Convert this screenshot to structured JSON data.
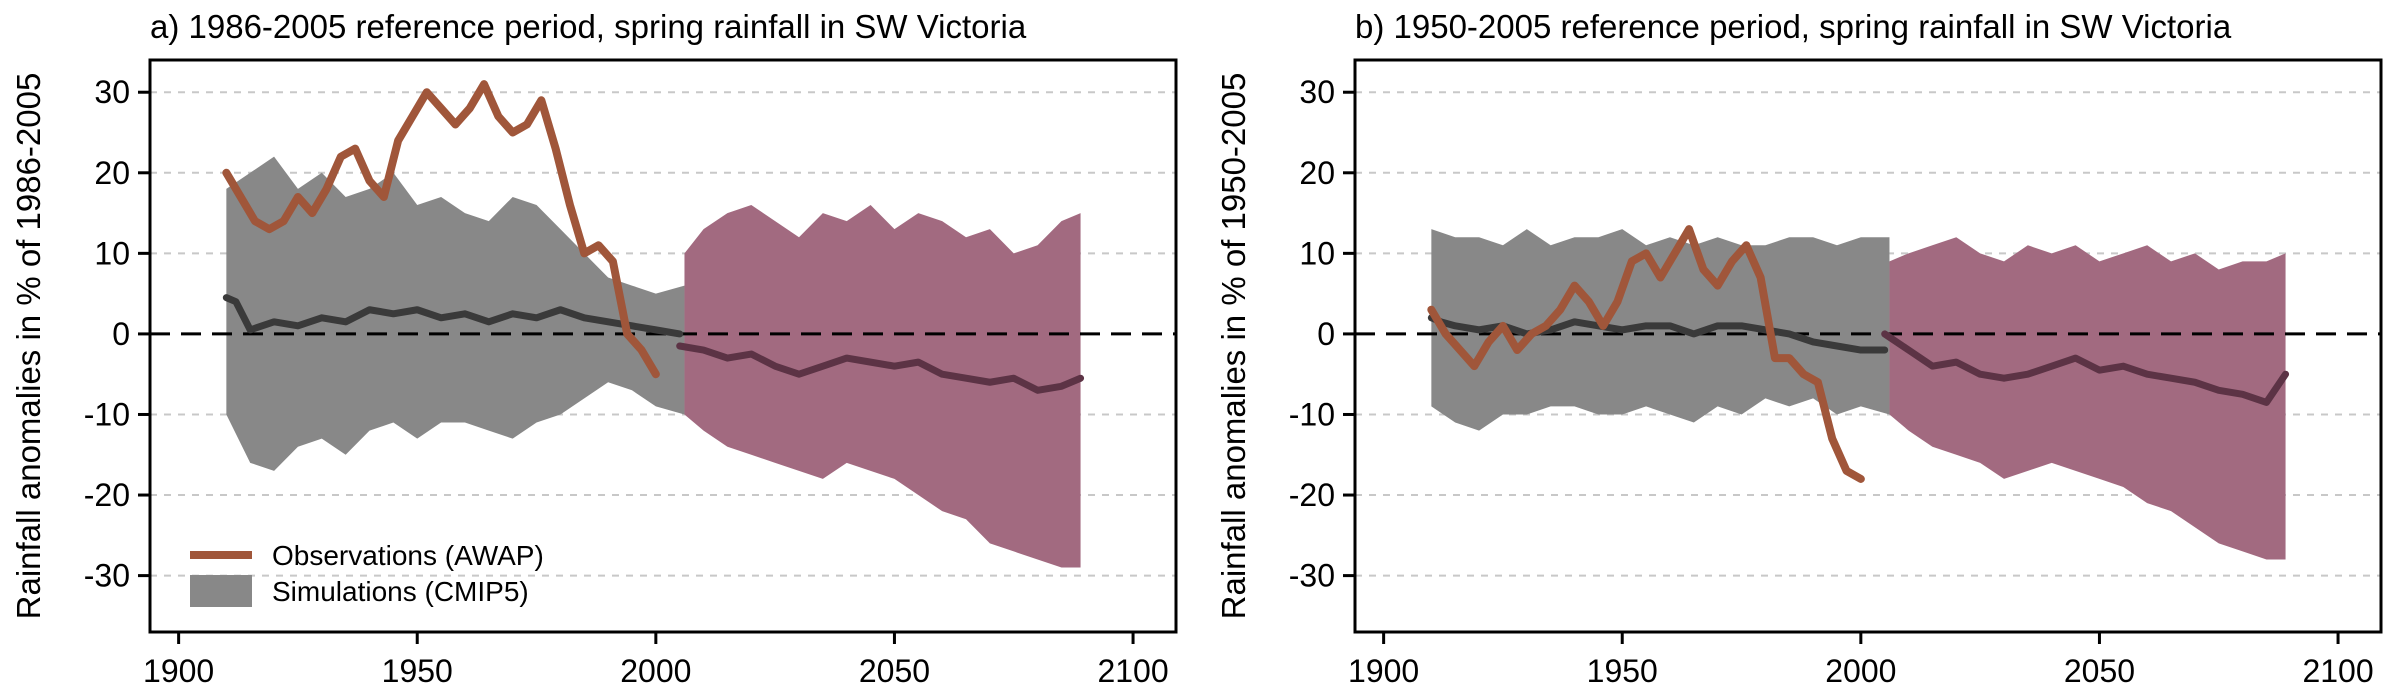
{
  "colors": {
    "observations": "#a0563a",
    "simulations": "#888888",
    "future": "#a26a80",
    "mean_line": "#3a3a3a",
    "mean_line_future": "#5c3345",
    "grid": "#c8c8c8"
  },
  "legend": {
    "observations": "Observations (AWAP)",
    "simulations": "Simulations (CMIP5)"
  },
  "chart_data": [
    {
      "type": "area",
      "title": "a) 1986-2005 reference period, spring rainfall in SW Victoria",
      "xlabel": "",
      "ylabel": "Rainfall anomalies in % of 1986-2005",
      "xlim": [
        1894,
        2109
      ],
      "ylim": [
        -37,
        34
      ],
      "xticks": [
        1900,
        1950,
        2000,
        2050,
        2100
      ],
      "yticks": [
        30,
        20,
        10,
        0,
        -10,
        -20,
        -30
      ],
      "xtick_labels": [
        "1900",
        "1950",
        "2000",
        "2050",
        "2100"
      ],
      "ytick_labels": [
        "30",
        "20",
        "10",
        "0",
        "-10",
        "-20",
        "-30"
      ],
      "grid": "horizontal dashed",
      "legend_position": "bottom-left",
      "simulations_envelope": {
        "x": [
          1910,
          1915,
          1920,
          1925,
          1930,
          1935,
          1940,
          1945,
          1950,
          1955,
          1960,
          1965,
          1970,
          1975,
          1980,
          1985,
          1990,
          1995,
          2000,
          2006
        ],
        "upper": [
          18,
          20,
          22,
          18,
          20,
          17,
          18,
          20,
          16,
          17,
          15,
          14,
          17,
          16,
          13,
          10,
          7,
          6,
          5,
          6
        ],
        "lower": [
          -10,
          -16,
          -17,
          -14,
          -13,
          -15,
          -12,
          -11,
          -13,
          -11,
          -11,
          -12,
          -13,
          -11,
          -10,
          -8,
          -6,
          -7,
          -9,
          -10
        ]
      },
      "projection_envelope": {
        "x": [
          2006,
          2010,
          2015,
          2020,
          2025,
          2030,
          2035,
          2040,
          2045,
          2050,
          2055,
          2060,
          2065,
          2070,
          2075,
          2080,
          2085,
          2089
        ],
        "upper": [
          10,
          13,
          15,
          16,
          14,
          12,
          15,
          14,
          16,
          13,
          15,
          14,
          12,
          13,
          10,
          11,
          14,
          15
        ],
        "lower": [
          -10,
          -12,
          -14,
          -15,
          -16,
          -17,
          -18,
          -16,
          -17,
          -18,
          -20,
          -22,
          -23,
          -26,
          -27,
          -28,
          -29,
          -29
        ]
      },
      "simulations_mean": {
        "x": [
          1910,
          1912,
          1915,
          1920,
          1925,
          1930,
          1935,
          1940,
          1945,
          1950,
          1955,
          1960,
          1965,
          1970,
          1975,
          1980,
          1985,
          1990,
          1995,
          2000,
          2005
        ],
        "y": [
          4.5,
          4,
          0.5,
          1.5,
          1,
          2,
          1.5,
          3,
          2.5,
          3,
          2,
          2.5,
          1.5,
          2.5,
          2,
          3,
          2,
          1.5,
          1,
          0.5,
          0
        ]
      },
      "projection_mean": {
        "x": [
          2005,
          2010,
          2015,
          2020,
          2025,
          2030,
          2035,
          2040,
          2045,
          2050,
          2055,
          2060,
          2065,
          2070,
          2075,
          2080,
          2085,
          2089
        ],
        "y": [
          -1.5,
          -2,
          -3,
          -2.5,
          -4,
          -5,
          -4,
          -3,
          -3.5,
          -4,
          -3.5,
          -5,
          -5.5,
          -6,
          -5.5,
          -7,
          -6.5,
          -5.5
        ]
      },
      "observations": {
        "x": [
          1910,
          1913,
          1916,
          1919,
          1922,
          1925,
          1928,
          1931,
          1934,
          1937,
          1940,
          1943,
          1946,
          1949,
          1952,
          1955,
          1958,
          1961,
          1964,
          1967,
          1970,
          1973,
          1976,
          1979,
          1982,
          1985,
          1988,
          1991,
          1994,
          1997,
          2000
        ],
        "y": [
          20,
          17,
          14,
          13,
          14,
          17,
          15,
          18,
          22,
          23,
          19,
          17,
          24,
          27,
          30,
          28,
          26,
          28,
          31,
          27,
          25,
          26,
          29,
          23,
          16,
          10,
          11,
          9,
          0,
          -2,
          -5
        ]
      }
    },
    {
      "type": "area",
      "title": "b) 1950-2005 reference period, spring rainfall in SW Victoria",
      "xlabel": "",
      "ylabel": "Rainfall anomalies in % of 1950-2005",
      "xlim": [
        1894,
        2109
      ],
      "ylim": [
        -37,
        34
      ],
      "xticks": [
        1900,
        1950,
        2000,
        2050,
        2100
      ],
      "yticks": [
        30,
        20,
        10,
        0,
        -10,
        -20,
        -30
      ],
      "xtick_labels": [
        "1900",
        "1950",
        "2000",
        "2050",
        "2100"
      ],
      "ytick_labels": [
        "30",
        "20",
        "10",
        "0",
        "-10",
        "-20",
        "-30"
      ],
      "grid": "horizontal dashed",
      "simulations_envelope": {
        "x": [
          1910,
          1915,
          1920,
          1925,
          1930,
          1935,
          1940,
          1945,
          1950,
          1955,
          1960,
          1965,
          1970,
          1975,
          1980,
          1985,
          1990,
          1995,
          2000,
          2006
        ],
        "upper": [
          13,
          12,
          12,
          11,
          13,
          11,
          12,
          12,
          13,
          11,
          12,
          11,
          12,
          11,
          11,
          12,
          12,
          11,
          12,
          12
        ],
        "lower": [
          -9,
          -11,
          -12,
          -10,
          -10,
          -9,
          -9,
          -10,
          -10,
          -9,
          -10,
          -11,
          -9,
          -10,
          -8,
          -9,
          -8,
          -10,
          -9,
          -10
        ]
      },
      "projection_envelope": {
        "x": [
          2006,
          2010,
          2015,
          2020,
          2025,
          2030,
          2035,
          2040,
          2045,
          2050,
          2055,
          2060,
          2065,
          2070,
          2075,
          2080,
          2085,
          2089
        ],
        "upper": [
          9,
          10,
          11,
          12,
          10,
          9,
          11,
          10,
          11,
          9,
          10,
          11,
          9,
          10,
          8,
          9,
          9,
          10
        ],
        "lower": [
          -10,
          -12,
          -14,
          -15,
          -16,
          -18,
          -17,
          -16,
          -17,
          -18,
          -19,
          -21,
          -22,
          -24,
          -26,
          -27,
          -28,
          -28
        ]
      },
      "simulations_mean": {
        "x": [
          1910,
          1912,
          1915,
          1920,
          1925,
          1930,
          1935,
          1940,
          1945,
          1950,
          1955,
          1960,
          1965,
          1970,
          1975,
          1980,
          1985,
          1990,
          1995,
          2000,
          2005
        ],
        "y": [
          2,
          1.5,
          1,
          0.5,
          1,
          0,
          0.5,
          1.5,
          1,
          0.5,
          1,
          1,
          0,
          1,
          1,
          0.5,
          0,
          -1,
          -1.5,
          -2,
          -2
        ]
      },
      "projection_mean": {
        "x": [
          2005,
          2010,
          2015,
          2020,
          2025,
          2030,
          2035,
          2040,
          2045,
          2050,
          2055,
          2060,
          2065,
          2070,
          2075,
          2080,
          2085,
          2089
        ],
        "y": [
          0,
          -2,
          -4,
          -3.5,
          -5,
          -5.5,
          -5,
          -4,
          -3,
          -4.5,
          -4,
          -5,
          -5.5,
          -6,
          -7,
          -7.5,
          -8.5,
          -5
        ]
      },
      "observations": {
        "x": [
          1910,
          1913,
          1916,
          1919,
          1922,
          1925,
          1928,
          1931,
          1934,
          1937,
          1940,
          1943,
          1946,
          1949,
          1952,
          1955,
          1958,
          1961,
          1964,
          1967,
          1970,
          1973,
          1976,
          1979,
          1982,
          1985,
          1988,
          1991,
          1994,
          1997,
          2000
        ],
        "y": [
          3,
          0,
          -2,
          -4,
          -1,
          1,
          -2,
          0,
          1,
          3,
          6,
          4,
          1,
          4,
          9,
          10,
          7,
          10,
          13,
          8,
          6,
          9,
          11,
          7,
          -3,
          -3,
          -5,
          -6,
          -13,
          -17,
          -18
        ]
      }
    }
  ]
}
